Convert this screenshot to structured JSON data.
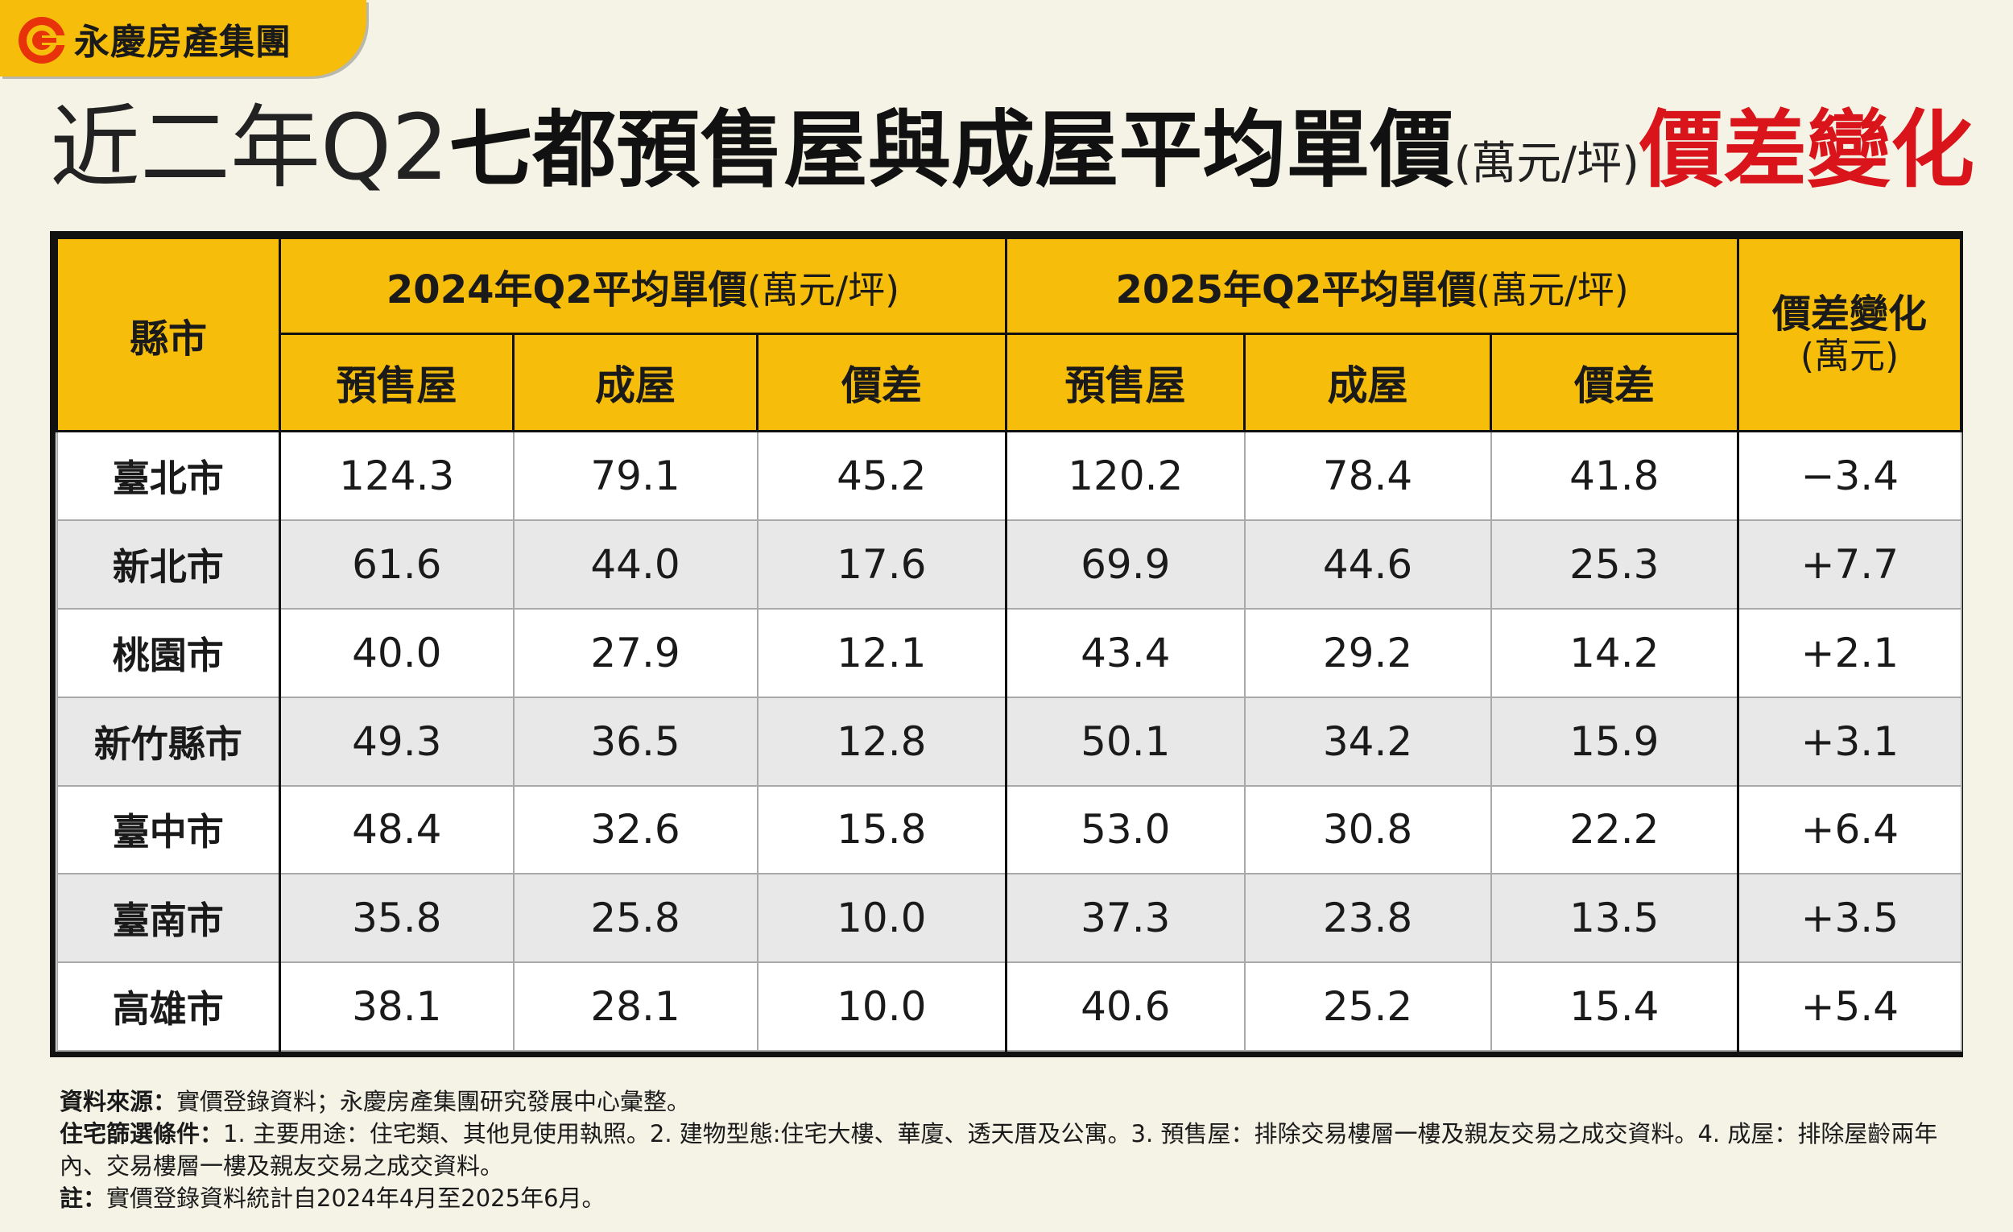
{
  "brand": {
    "name": "永慶房產集團",
    "logo_icon": "yungching-logo-icon",
    "color": "#f6bd0a"
  },
  "title": {
    "part1": "近二年Q2",
    "part2": "七都預售屋與成屋平均單價",
    "unit": "(萬元/坪)",
    "part3": "價差變化"
  },
  "chart_data": {
    "type": "table",
    "header": {
      "city": "縣市",
      "group_2024": "2024年Q2平均單價",
      "group_2025": "2025年Q2平均單價",
      "group_unit": "(萬元/坪)",
      "sub_presale": "預售屋",
      "sub_existing": "成屋",
      "sub_diff": "價差",
      "change": "價差變化",
      "change_unit": "(萬元)"
    },
    "columns": [
      "縣市",
      "2024 預售屋",
      "2024 成屋",
      "2024 價差",
      "2025 預售屋",
      "2025 成屋",
      "2025 價差",
      "價差變化"
    ],
    "rows": [
      [
        "臺北市",
        "124.3",
        "79.1",
        "45.2",
        "120.2",
        "78.4",
        "41.8",
        "−3.4"
      ],
      [
        "新北市",
        "61.6",
        "44.0",
        "17.6",
        "69.9",
        "44.6",
        "25.3",
        "+7.7"
      ],
      [
        "桃園市",
        "40.0",
        "27.9",
        "12.1",
        "43.4",
        "29.2",
        "14.2",
        "+2.1"
      ],
      [
        "新竹縣市",
        "49.3",
        "36.5",
        "12.8",
        "50.1",
        "34.2",
        "15.9",
        "+3.1"
      ],
      [
        "臺中市",
        "48.4",
        "32.6",
        "15.8",
        "53.0",
        "30.8",
        "22.2",
        "+6.4"
      ],
      [
        "臺南市",
        "35.8",
        "25.8",
        "10.0",
        "37.3",
        "23.8",
        "13.5",
        "+3.5"
      ],
      [
        "高雄市",
        "38.1",
        "28.1",
        "10.0",
        "40.6",
        "25.2",
        "15.4",
        "+5.4"
      ]
    ]
  },
  "notes": {
    "source_label": "資料來源：",
    "source_text": "實價登錄資料；永慶房產集團研究發展中心彙整。",
    "filter_label": "住宅篩選條件：",
    "filter_text": "1. 主要用途：住宅類、其他見使用執照。2. 建物型態:住宅大樓、華廈、透天厝及公寓。3. 預售屋：排除交易樓層一樓及親友交易之成交資料。4. 成屋：排除屋齡兩年內、交易樓層一樓及親友交易之成交資料。",
    "remark_label": "註：",
    "remark_text": "實價登錄資料統計自2024年4月至2025年6月。"
  }
}
